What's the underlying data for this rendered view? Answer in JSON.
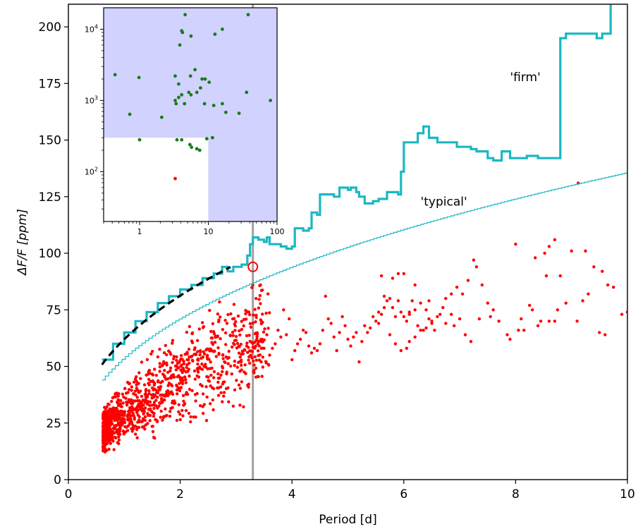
{
  "chart_data": [
    {
      "type": "scatter",
      "xlabel": "Period [d]",
      "ylabel": "ΔF/F [ppm]",
      "xlim": [
        0,
        10
      ],
      "ylim": [
        0,
        210
      ],
      "x_ticks": [
        0,
        2,
        4,
        6,
        8,
        10
      ],
      "y_ticks": [
        0,
        25,
        50,
        75,
        100,
        125,
        150,
        175,
        200
      ],
      "colors": {
        "scatter": "#ff0000",
        "firm": "#1ab8c2",
        "typical": "#1ab8c2",
        "fit": "#000000",
        "marker": "#ff0000",
        "vline": "#a0a0a0"
      },
      "vertical_line_x": 3.3,
      "highlight_point": {
        "x": 3.3,
        "y": 94
      },
      "annotations": [
        {
          "text": "'firm'",
          "x": 7.9,
          "y": 176
        },
        {
          "text": "'typical'",
          "x": 6.3,
          "y": 121
        }
      ],
      "series": [
        {
          "name": "firm",
          "kind": "step-line",
          "points": [
            [
              0.6,
              53
            ],
            [
              0.8,
              60
            ],
            [
              1.0,
              65
            ],
            [
              1.2,
              70
            ],
            [
              1.4,
              74
            ],
            [
              1.6,
              78
            ],
            [
              1.8,
              81
            ],
            [
              2.0,
              84
            ],
            [
              2.2,
              86
            ],
            [
              2.4,
              89
            ],
            [
              2.6,
              91
            ],
            [
              2.75,
              94
            ],
            [
              2.85,
              92
            ],
            [
              2.95,
              94
            ],
            [
              3.1,
              95
            ],
            [
              3.2,
              99
            ],
            [
              3.25,
              104
            ],
            [
              3.3,
              107
            ],
            [
              3.4,
              106
            ],
            [
              3.5,
              105
            ],
            [
              3.55,
              107
            ],
            [
              3.6,
              104
            ],
            [
              3.8,
              103
            ],
            [
              3.9,
              102
            ],
            [
              4.0,
              103
            ],
            [
              4.05,
              111
            ],
            [
              4.2,
              110
            ],
            [
              4.3,
              111
            ],
            [
              4.35,
              118
            ],
            [
              4.45,
              117
            ],
            [
              4.5,
              126
            ],
            [
              4.65,
              126
            ],
            [
              4.75,
              125
            ],
            [
              4.85,
              129
            ],
            [
              5.0,
              128
            ],
            [
              5.05,
              129
            ],
            [
              5.15,
              127
            ],
            [
              5.2,
              125
            ],
            [
              5.3,
              122
            ],
            [
              5.45,
              123
            ],
            [
              5.55,
              124
            ],
            [
              5.65,
              124
            ],
            [
              5.7,
              127
            ],
            [
              5.9,
              126
            ],
            [
              5.95,
              136
            ],
            [
              6.0,
              149
            ],
            [
              6.2,
              149
            ],
            [
              6.25,
              153
            ],
            [
              6.3,
              153
            ],
            [
              6.35,
              156
            ],
            [
              6.45,
              151
            ],
            [
              6.6,
              149
            ],
            [
              6.8,
              149
            ],
            [
              6.95,
              147
            ],
            [
              7.2,
              146
            ],
            [
              7.3,
              145
            ],
            [
              7.45,
              145
            ],
            [
              7.5,
              142
            ],
            [
              7.6,
              141
            ],
            [
              7.75,
              145
            ],
            [
              7.9,
              142
            ],
            [
              8.0,
              142
            ],
            [
              8.2,
              143
            ],
            [
              8.4,
              142
            ],
            [
              8.6,
              142
            ],
            [
              8.75,
              142
            ],
            [
              8.8,
              195
            ],
            [
              8.9,
              197
            ],
            [
              9.0,
              197
            ],
            [
              9.2,
              197
            ],
            [
              9.3,
              197
            ],
            [
              9.45,
              195
            ],
            [
              9.55,
              197
            ],
            [
              9.6,
              197
            ],
            [
              9.7,
              210
            ]
          ]
        },
        {
          "name": "typical",
          "kind": "power-law",
          "coef": 54,
          "exponent": 0.4,
          "xmin": 0.6,
          "xmax": 10
        },
        {
          "name": "fit",
          "kind": "dashed-power-law",
          "coef": 62,
          "exponent": 0.39,
          "xmin": 0.6,
          "xmax": 2.9
        },
        {
          "name": "detections",
          "kind": "scatter",
          "points": [
            [
              3.3,
              86
            ],
            [
              9.12,
              131
            ],
            [
              8.7,
              106
            ],
            [
              8.6,
              103
            ],
            [
              8.52,
              100
            ],
            [
              8.0,
              104
            ],
            [
              8.35,
              98
            ],
            [
              9.0,
              101
            ],
            [
              9.25,
              101
            ],
            [
              9.4,
              94
            ],
            [
              9.55,
              92
            ],
            [
              9.65,
              86
            ],
            [
              9.1,
              70
            ],
            [
              8.55,
              90
            ],
            [
              8.8,
              90
            ],
            [
              9.75,
              85
            ],
            [
              9.9,
              73
            ],
            [
              10.0,
              74
            ],
            [
              9.5,
              65
            ],
            [
              9.6,
              64
            ],
            [
              9.3,
              82
            ],
            [
              9.2,
              79
            ],
            [
              8.9,
              78
            ],
            [
              8.75,
              75
            ],
            [
              8.4,
              68
            ],
            [
              8.25,
              77
            ],
            [
              8.1,
              71
            ],
            [
              8.15,
              66
            ],
            [
              8.3,
              75
            ],
            [
              8.45,
              70
            ],
            [
              8.6,
              70
            ],
            [
              8.7,
              70
            ],
            [
              7.9,
              62
            ],
            [
              7.7,
              70
            ],
            [
              7.6,
              75
            ],
            [
              7.5,
              78
            ],
            [
              7.4,
              86
            ],
            [
              7.3,
              94
            ],
            [
              7.25,
              97
            ],
            [
              7.15,
              88
            ],
            [
              7.05,
              82
            ],
            [
              6.95,
              85
            ],
            [
              6.85,
              82
            ],
            [
              6.75,
              80
            ],
            [
              6.7,
              76
            ],
            [
              6.6,
              72
            ],
            [
              6.5,
              70
            ],
            [
              6.45,
              79
            ],
            [
              6.4,
              67
            ],
            [
              6.35,
              66
            ],
            [
              6.3,
              66
            ],
            [
              6.25,
              68
            ],
            [
              6.2,
              75
            ],
            [
              6.15,
              79
            ],
            [
              6.1,
              74
            ],
            [
              6.05,
              70
            ],
            [
              6.0,
              72
            ],
            [
              5.95,
              74
            ],
            [
              5.9,
              79
            ],
            [
              5.85,
              72
            ],
            [
              5.8,
              76
            ],
            [
              5.75,
              80
            ],
            [
              5.7,
              79
            ],
            [
              5.65,
              81
            ],
            [
              5.6,
              73
            ],
            [
              5.55,
              74
            ],
            [
              5.5,
              70
            ],
            [
              5.45,
              72
            ],
            [
              5.4,
              67
            ],
            [
              5.35,
              65
            ],
            [
              5.3,
              68
            ],
            [
              5.25,
              61
            ],
            [
              5.2,
              52
            ],
            [
              5.15,
              65
            ],
            [
              5.1,
              63
            ],
            [
              5.05,
              59
            ],
            [
              5.0,
              62
            ],
            [
              4.95,
              68
            ],
            [
              4.9,
              72
            ],
            [
              4.85,
              65
            ],
            [
              4.8,
              57
            ],
            [
              4.75,
              63
            ],
            [
              4.7,
              69
            ],
            [
              4.65,
              71
            ],
            [
              4.6,
              81
            ],
            [
              4.55,
              66
            ],
            [
              4.5,
              60
            ],
            [
              4.45,
              57
            ],
            [
              4.4,
              58
            ],
            [
              4.35,
              56
            ],
            [
              4.3,
              59
            ],
            [
              4.25,
              65
            ],
            [
              4.2,
              66
            ],
            [
              4.15,
              62
            ],
            [
              4.1,
              60
            ],
            [
              4.05,
              57
            ],
            [
              4.0,
              53
            ],
            [
              3.95,
              71
            ],
            [
              3.9,
              64
            ],
            [
              3.85,
              75
            ],
            [
              3.8,
              63
            ],
            [
              3.75,
              66
            ],
            [
              3.7,
              60
            ],
            [
              3.65,
              58
            ],
            [
              3.6,
              55
            ],
            [
              3.55,
              64
            ],
            [
              3.5,
              58
            ],
            [
              3.45,
              52
            ],
            [
              3.4,
              61
            ],
            [
              3.35,
              59
            ],
            [
              6.45,
              71
            ],
            [
              6.55,
              66
            ],
            [
              6.75,
              69
            ],
            [
              6.9,
              68
            ],
            [
              7.0,
              71
            ],
            [
              7.35,
              71
            ],
            [
              7.55,
              72
            ],
            [
              7.85,
              64
            ],
            [
              8.05,
              66
            ],
            [
              6.2,
              63
            ],
            [
              6.1,
              61
            ],
            [
              6.05,
              58
            ],
            [
              5.95,
              57
            ],
            [
              5.85,
              60
            ],
            [
              5.75,
              64
            ],
            [
              5.65,
              76
            ],
            [
              5.55,
              69
            ],
            [
              6.2,
              86
            ],
            [
              6.0,
              91
            ],
            [
              5.9,
              91
            ],
            [
              5.8,
              89
            ],
            [
              5.6,
              90
            ],
            [
              6.1,
              73
            ],
            [
              6.3,
              78
            ],
            [
              6.4,
              75
            ],
            [
              6.5,
              69
            ],
            [
              6.65,
              73
            ],
            [
              6.85,
              73
            ],
            [
              7.1,
              64
            ],
            [
              7.2,
              61
            ]
          ],
          "generated_bulk": {
            "count": 1100,
            "xmin": 0.62,
            "xmax": 3.6,
            "center": 21.5,
            "exponent": 0.62,
            "scatter": 0.2
          }
        }
      ]
    },
    {
      "type": "scatter",
      "role": "inset",
      "xscale": "log",
      "yscale": "log",
      "xlim": [
        0.3,
        100
      ],
      "ylim": [
        20,
        20000
      ],
      "x_ticks": [
        1,
        10,
        100
      ],
      "x_tick_labels": [
        "1",
        "10",
        "100"
      ],
      "y_ticks": [
        100,
        1000,
        10000
      ],
      "y_tick_labels": [
        {
          "base": "10",
          "exp": "2"
        },
        {
          "base": "10",
          "exp": "3"
        },
        {
          "base": "10",
          "exp": "4"
        }
      ],
      "shade_color": "#d2d2ff",
      "unshaded_box": {
        "xmax": 10,
        "ymax": 300
      },
      "green_color": "#1a7a1a",
      "green_points": [
        [
          0.44,
          2300
        ],
        [
          0.98,
          2100
        ],
        [
          3.3,
          2200
        ],
        [
          4.6,
          16000
        ],
        [
          4.1,
          9500
        ],
        [
          4.2,
          9000
        ],
        [
          5.6,
          8000
        ],
        [
          3.85,
          6000
        ],
        [
          5.5,
          2200
        ],
        [
          6.4,
          2700
        ],
        [
          8.1,
          2000
        ],
        [
          9.0,
          2000
        ],
        [
          10.3,
          1800
        ],
        [
          7.7,
          1500
        ],
        [
          5.2,
          1300
        ],
        [
          6.8,
          1300
        ],
        [
          5.6,
          1200
        ],
        [
          3.7,
          1100
        ],
        [
          3.7,
          1700
        ],
        [
          4.1,
          1200
        ],
        [
          3.4,
          900
        ],
        [
          4.5,
          900
        ],
        [
          8.8,
          900
        ],
        [
          12.0,
          850
        ],
        [
          16.0,
          900
        ],
        [
          18.0,
          680
        ],
        [
          28.0,
          660
        ],
        [
          36.0,
          1300
        ],
        [
          80.0,
          1000
        ],
        [
          0.72,
          640
        ],
        [
          2.1,
          580
        ],
        [
          3.3,
          1000
        ],
        [
          9.5,
          290
        ],
        [
          11.5,
          300
        ],
        [
          5.4,
          240
        ],
        [
          5.7,
          220
        ],
        [
          6.8,
          210
        ],
        [
          7.5,
          200
        ],
        [
          1.0,
          280
        ],
        [
          3.5,
          280
        ],
        [
          4.1,
          280
        ],
        [
          16.0,
          10000
        ],
        [
          12.5,
          8500
        ],
        [
          38.0,
          16000
        ]
      ],
      "red_points": [
        [
          3.3,
          80
        ]
      ]
    }
  ]
}
